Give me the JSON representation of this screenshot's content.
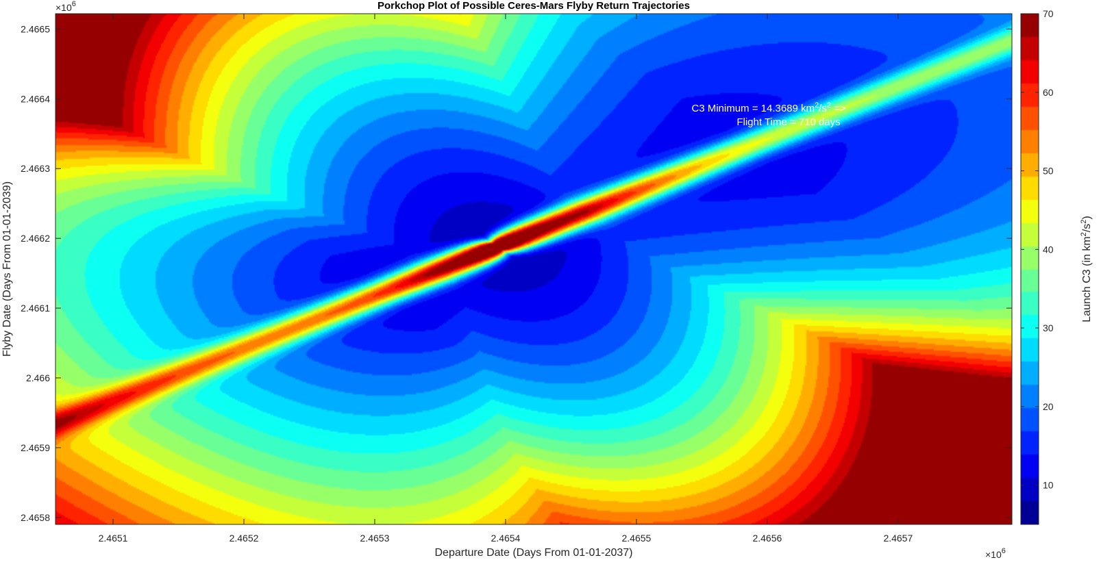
{
  "chart_data": {
    "type": "heatmap",
    "subtype": "filled-contour",
    "title": "Porkchop Plot of Possible Ceres-Mars Flyby Return Trajectories",
    "xlabel": "Departure Date (Days From 01-01-2037)",
    "ylabel": "Flyby Date (Days From 01-01-2039)",
    "x_exponent": "×10",
    "x_exponent_power": "6",
    "y_exponent": "×10",
    "y_exponent_power": "6",
    "xlim": [
      2465056,
      2465787
    ],
    "ylim": [
      2465790,
      2466522
    ],
    "xticks": [
      2465100,
      2465200,
      2465300,
      2465400,
      2465500,
      2465600,
      2465700
    ],
    "xtick_labels": [
      "2.4651",
      "2.4652",
      "2.4653",
      "2.4654",
      "2.4655",
      "2.4656",
      "2.4657"
    ],
    "yticks": [
      2465800,
      2465900,
      2466000,
      2466100,
      2466200,
      2466300,
      2466400,
      2466500
    ],
    "ytick_labels": [
      "2.4658",
      "2.4659",
      "2.466",
      "2.4661",
      "2.4662",
      "2.4663",
      "2.4664",
      "2.4665"
    ],
    "colorbar": {
      "label": "Launch C3 (in km",
      "label_sup": "2",
      "label_mid": "/s",
      "label_sup2": "2",
      "label_end": ")",
      "clim": [
        5,
        70
      ],
      "ticks": [
        10,
        20,
        30,
        40,
        50,
        60,
        70
      ],
      "tick_labels": [
        "10",
        "20",
        "30",
        "40",
        "50",
        "60",
        "70"
      ],
      "colormap": "jet"
    },
    "contour_levels": 22,
    "singularity": {
      "departure": 2465394,
      "flyby": 2466188
    },
    "minimum": {
      "value": 14.3689,
      "flight_time_days": 710
    },
    "annotation": {
      "line1_pre": "C3 Minimum = 14.3689 km",
      "line1_sup": "2",
      "line1_mid": "/s",
      "line1_sup2": "2",
      "line1_post": " =>",
      "line2": "Flight Time = 710 days",
      "x": 2465550,
      "y_line1": 2466382,
      "y_line2": 2466362
    },
    "colors": {
      "background": "#ffffff",
      "axes": "#262626",
      "annotation": "#ffffff"
    }
  }
}
